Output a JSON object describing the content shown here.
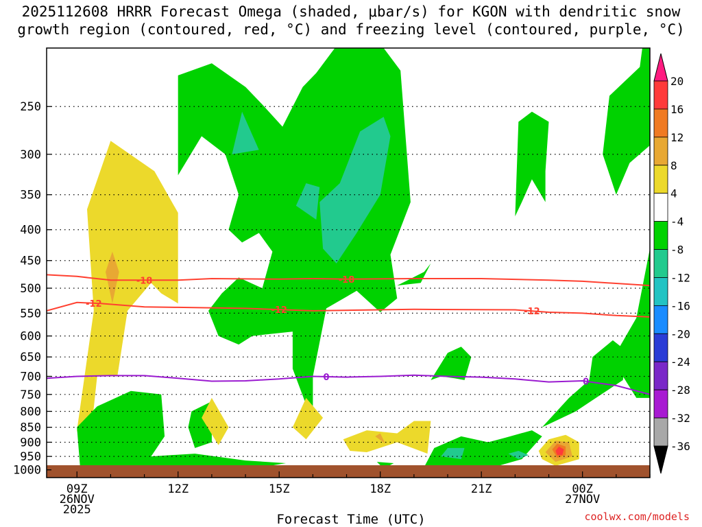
{
  "title_line1": "2025112608 HRRR Forecast Omega (shaded, μbar/s) for KGON with dendritic snow",
  "title_line2": "growth region (contoured, red, °C) and freezing level (contoured, purple, °C)",
  "credit": "coolwx.com/models",
  "chart_data": {
    "type": "heatmap",
    "title": "2025112608 HRRR Forecast Omega (shaded, μbar/s) for KGON with dendritic snow growth region (contoured, red, °C) and freezing level (contoured, purple, °C)",
    "xlabel": "Forecast Time (UTC)",
    "ylabel": "",
    "x_ticks": [
      {
        "hour": 9,
        "label": [
          "09Z",
          "26NOV",
          "2025"
        ]
      },
      {
        "hour": 12,
        "label": [
          "12Z"
        ]
      },
      {
        "hour": 15,
        "label": [
          "15Z"
        ]
      },
      {
        "hour": 18,
        "label": [
          "18Z"
        ]
      },
      {
        "hour": 21,
        "label": [
          "21Z"
        ]
      },
      {
        "hour": 24,
        "label": [
          "00Z",
          "27NOV"
        ]
      }
    ],
    "xlim": [
      8.1,
      26.0
    ],
    "y_scale": "log",
    "y_ticks": [
      250,
      300,
      350,
      400,
      450,
      500,
      550,
      600,
      650,
      700,
      750,
      800,
      850,
      900,
      950,
      1000
    ],
    "ylim": [
      1030,
      200
    ],
    "colorbar": {
      "levels": [
        20,
        16,
        12,
        8,
        4,
        -4,
        -8,
        -12,
        -16,
        -20,
        -24,
        -28,
        -32,
        -36
      ],
      "colors": [
        "#ff1a80",
        "#ff3a3a",
        "#f07a22",
        "#e8a833",
        "#ecd92b",
        "#ffffff",
        "#00d200",
        "#22ca8e",
        "#22c3c3",
        "#1a8cff",
        "#2a3cd6",
        "#7a28c8",
        "#a81ad2",
        "#a8a8a8",
        "#000000"
      ]
    },
    "shaded_regions": [
      {
        "class": 4,
        "points": [
          [
            9.3,
            1000
          ],
          [
            9.0,
            860
          ],
          [
            9.5,
            545
          ],
          [
            9.3,
            370
          ],
          [
            10.0,
            285
          ],
          [
            11.3,
            320
          ],
          [
            12.0,
            375
          ],
          [
            12.0,
            530
          ],
          [
            11.5,
            510
          ],
          [
            11.2,
            490
          ],
          [
            10.5,
            545
          ],
          [
            10.2,
            700
          ],
          [
            9.6,
            700
          ]
        ]
      },
      {
        "class": 8,
        "points": [
          [
            10.05,
            530
          ],
          [
            9.85,
            470
          ],
          [
            10.05,
            435
          ],
          [
            10.25,
            470
          ]
        ]
      },
      {
        "class": -4,
        "points": [
          [
            9.1,
            1000
          ],
          [
            9.0,
            850
          ],
          [
            9.6,
            785
          ],
          [
            10.6,
            740
          ],
          [
            11.5,
            750
          ],
          [
            11.6,
            880
          ],
          [
            11.2,
            950
          ],
          [
            12.5,
            940
          ],
          [
            14.0,
            965
          ],
          [
            15.2,
            975
          ],
          [
            14.0,
            1000
          ]
        ]
      },
      {
        "class": -4,
        "points": [
          [
            12.3,
            850
          ],
          [
            12.4,
            800
          ],
          [
            13.0,
            770
          ],
          [
            13.0,
            900
          ],
          [
            12.5,
            920
          ]
        ]
      },
      {
        "class": -4,
        "points": [
          [
            12.0,
            325
          ],
          [
            12.0,
            222
          ],
          [
            13.0,
            212
          ],
          [
            14.0,
            232
          ],
          [
            14.5,
            248
          ],
          [
            15.1,
            270
          ],
          [
            15.7,
            232
          ],
          [
            16.1,
            220
          ],
          [
            16.8,
            195
          ],
          [
            17.3,
            190
          ],
          [
            18.1,
            200
          ],
          [
            18.6,
            218
          ],
          [
            18.9,
            360
          ],
          [
            18.3,
            440
          ],
          [
            18.5,
            520
          ],
          [
            18.0,
            548
          ],
          [
            17.3,
            505
          ],
          [
            16.4,
            540
          ],
          [
            16.0,
            700
          ],
          [
            16.0,
            790
          ],
          [
            15.8,
            780
          ],
          [
            15.4,
            680
          ],
          [
            15.4,
            590
          ],
          [
            14.2,
            600
          ],
          [
            13.8,
            620
          ],
          [
            13.2,
            600
          ],
          [
            12.9,
            545
          ],
          [
            13.3,
            510
          ],
          [
            13.8,
            480
          ],
          [
            14.5,
            500
          ],
          [
            14.8,
            435
          ],
          [
            14.4,
            405
          ],
          [
            13.9,
            420
          ],
          [
            13.5,
            400
          ],
          [
            13.8,
            350
          ],
          [
            13.4,
            300
          ],
          [
            12.7,
            280
          ]
        ]
      },
      {
        "class": -8,
        "points": [
          [
            13.6,
            300
          ],
          [
            13.9,
            255
          ],
          [
            14.4,
            295
          ]
        ]
      },
      {
        "class": -8,
        "points": [
          [
            15.5,
            365
          ],
          [
            15.8,
            335
          ],
          [
            16.2,
            340
          ],
          [
            16.1,
            385
          ]
        ]
      },
      {
        "class": -8,
        "points": [
          [
            16.3,
            430
          ],
          [
            16.2,
            360
          ],
          [
            16.8,
            335
          ],
          [
            17.4,
            275
          ],
          [
            18.1,
            260
          ],
          [
            18.3,
            280
          ],
          [
            18.0,
            350
          ],
          [
            17.3,
            405
          ],
          [
            16.7,
            455
          ]
        ]
      },
      {
        "class": -4,
        "points": [
          [
            18.5,
            495
          ],
          [
            19.3,
            470
          ],
          [
            19.5,
            455
          ],
          [
            19.2,
            490
          ]
        ]
      },
      {
        "class": -4,
        "points": [
          [
            17.9,
            970
          ],
          [
            18.4,
            975
          ],
          [
            18.1,
            995
          ]
        ]
      },
      {
        "class": -4,
        "points": [
          [
            19.5,
            710
          ],
          [
            20.0,
            640
          ],
          [
            20.4,
            625
          ],
          [
            20.7,
            650
          ],
          [
            20.5,
            710
          ],
          [
            20.2,
            705
          ],
          [
            19.8,
            700
          ]
        ]
      },
      {
        "class": -4,
        "points": [
          [
            19.3,
            990
          ],
          [
            19.6,
            920
          ],
          [
            20.4,
            880
          ],
          [
            21.2,
            900
          ],
          [
            21.7,
            885
          ],
          [
            22.5,
            860
          ],
          [
            22.8,
            880
          ],
          [
            22.2,
            960
          ],
          [
            21.5,
            985
          ],
          [
            20.5,
            990
          ]
        ]
      },
      {
        "class": -8,
        "points": [
          [
            19.8,
            950
          ],
          [
            20.0,
            920
          ],
          [
            20.5,
            920
          ],
          [
            20.4,
            960
          ]
        ]
      },
      {
        "class": -8,
        "points": [
          [
            21.8,
            940
          ],
          [
            22.1,
            930
          ],
          [
            22.4,
            945
          ],
          [
            22.1,
            960
          ]
        ]
      },
      {
        "class": -4,
        "points": [
          [
            22.0,
            380
          ],
          [
            22.1,
            265
          ],
          [
            22.5,
            255
          ],
          [
            23.0,
            265
          ],
          [
            22.9,
            320
          ],
          [
            22.9,
            360
          ],
          [
            22.5,
            330
          ],
          [
            22.2,
            360
          ]
        ]
      },
      {
        "class": -4,
        "points": [
          [
            22.8,
            850
          ],
          [
            23.6,
            760
          ],
          [
            24.2,
            710
          ],
          [
            24.3,
            650
          ],
          [
            24.9,
            610
          ],
          [
            25.3,
            635
          ],
          [
            25.2,
            710
          ],
          [
            24.4,
            760
          ],
          [
            23.8,
            800
          ],
          [
            23.0,
            840
          ]
        ]
      },
      {
        "class": -4,
        "points": [
          [
            24.6,
            300
          ],
          [
            24.8,
            240
          ],
          [
            25.7,
            215
          ],
          [
            25.8,
            195
          ],
          [
            26.0,
            195
          ],
          [
            26.0,
            290
          ],
          [
            25.4,
            310
          ],
          [
            25.0,
            350
          ]
        ]
      },
      {
        "class": -4,
        "points": [
          [
            25.0,
            640
          ],
          [
            25.6,
            560
          ],
          [
            26.0,
            430
          ],
          [
            26.0,
            760
          ],
          [
            25.6,
            760
          ],
          [
            25.2,
            700
          ]
        ]
      },
      {
        "class": 4,
        "points": [
          [
            12.7,
            820
          ],
          [
            13.0,
            760
          ],
          [
            13.5,
            850
          ],
          [
            13.2,
            910
          ]
        ]
      },
      {
        "class": 4,
        "points": [
          [
            15.4,
            850
          ],
          [
            15.8,
            760
          ],
          [
            16.3,
            820
          ],
          [
            15.8,
            890
          ]
        ]
      },
      {
        "class": 4,
        "points": [
          [
            16.9,
            890
          ],
          [
            17.6,
            860
          ],
          [
            18.5,
            870
          ],
          [
            19.0,
            830
          ],
          [
            19.5,
            830
          ],
          [
            19.4,
            940
          ],
          [
            18.5,
            900
          ],
          [
            17.6,
            935
          ],
          [
            17.1,
            930
          ]
        ]
      },
      {
        "class": 8,
        "points": [
          [
            17.85,
            880
          ],
          [
            18.0,
            870
          ],
          [
            18.15,
            905
          ]
        ]
      },
      {
        "class": 4,
        "points": [
          [
            22.7,
            930
          ],
          [
            23.0,
            890
          ],
          [
            23.5,
            875
          ],
          [
            23.9,
            900
          ],
          [
            23.9,
            960
          ],
          [
            23.2,
            985
          ],
          [
            22.8,
            960
          ]
        ]
      },
      {
        "class": 8,
        "points": [
          [
            22.9,
            935
          ],
          [
            23.2,
            895
          ],
          [
            23.6,
            900
          ],
          [
            23.7,
            950
          ],
          [
            23.2,
            970
          ]
        ]
      },
      {
        "class": 12,
        "points": [
          [
            23.1,
            925
          ],
          [
            23.25,
            905
          ],
          [
            23.5,
            915
          ],
          [
            23.5,
            945
          ],
          [
            23.25,
            955
          ]
        ]
      },
      {
        "class": 16,
        "points": [
          [
            23.2,
            930
          ],
          [
            23.3,
            915
          ],
          [
            23.45,
            925
          ],
          [
            23.4,
            945
          ],
          [
            23.25,
            945
          ]
        ]
      }
    ],
    "contours": [
      {
        "value": -18,
        "color": "#ff4030",
        "points": [
          [
            8.1,
            475
          ],
          [
            9.0,
            478
          ],
          [
            10.0,
            485
          ],
          [
            12.0,
            485
          ],
          [
            13.0,
            482
          ],
          [
            15.0,
            483
          ],
          [
            16.0,
            482
          ],
          [
            17.0,
            483
          ],
          [
            19.0,
            482
          ],
          [
            21.0,
            482
          ],
          [
            23.0,
            485
          ],
          [
            24.0,
            487
          ],
          [
            26.0,
            495
          ]
        ],
        "labels": [
          {
            "x": 11.0,
            "text": "-18"
          },
          {
            "x": 17.0,
            "text": "-18"
          }
        ]
      },
      {
        "value": -12,
        "color": "#ff4030",
        "points": [
          [
            8.1,
            545
          ],
          [
            9.0,
            528
          ],
          [
            9.7,
            530
          ],
          [
            11.0,
            537
          ],
          [
            12.0,
            538
          ],
          [
            14.0,
            540
          ],
          [
            16.0,
            545
          ],
          [
            19.0,
            542
          ],
          [
            22.0,
            543
          ],
          [
            23.0,
            548
          ],
          [
            24.0,
            550
          ],
          [
            25.0,
            555
          ],
          [
            26.0,
            558
          ]
        ],
        "labels": [
          {
            "x": 9.5,
            "text": "-12"
          },
          {
            "x": 15.0,
            "text": "-12"
          },
          {
            "x": 22.5,
            "text": "-12"
          }
        ]
      },
      {
        "value": 0,
        "color": "#9a1ad0",
        "points": [
          [
            8.1,
            705
          ],
          [
            9.0,
            700
          ],
          [
            10.0,
            698
          ],
          [
            11.0,
            698
          ],
          [
            12.0,
            705
          ],
          [
            13.0,
            713
          ],
          [
            14.0,
            712
          ],
          [
            15.0,
            707
          ],
          [
            16.0,
            700
          ],
          [
            17.0,
            702
          ],
          [
            18.0,
            700
          ],
          [
            19.0,
            697
          ],
          [
            20.0,
            700
          ],
          [
            21.0,
            702
          ],
          [
            22.0,
            707
          ],
          [
            23.0,
            715
          ],
          [
            24.0,
            712
          ],
          [
            25.0,
            725
          ],
          [
            26.0,
            750
          ]
        ],
        "labels": [
          {
            "x": 16.4,
            "text": "0"
          },
          {
            "x": 24.1,
            "text": "0"
          }
        ]
      }
    ]
  }
}
